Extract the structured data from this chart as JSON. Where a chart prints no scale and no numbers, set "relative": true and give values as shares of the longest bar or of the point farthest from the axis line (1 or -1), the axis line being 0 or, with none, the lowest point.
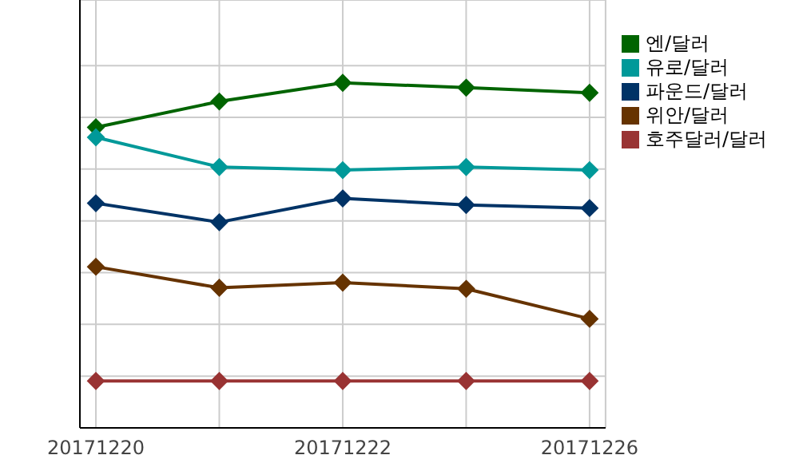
{
  "chart_data": {
    "type": "line",
    "relative": true,
    "categories": [
      "20171220",
      null,
      "20171222",
      null,
      "20171226"
    ],
    "series": [
      {
        "name": "엔/달러",
        "color": "#006400",
        "values": [
          0.871,
          0.946,
          1,
          0.986,
          0.971
        ]
      },
      {
        "name": "유로/달러",
        "color": "#009999",
        "values": [
          0.842,
          0.756,
          0.747,
          0.756,
          0.747
        ]
      },
      {
        "name": "파운드/달러",
        "color": "#003366",
        "values": [
          0.651,
          0.596,
          0.665,
          0.646,
          0.637
        ]
      },
      {
        "name": "위안/달러",
        "color": "#663300",
        "values": [
          0.467,
          0.406,
          0.421,
          0.403,
          0.316
        ]
      },
      {
        "name": "호주달러/달러",
        "color": "#993333",
        "values": [
          0.136,
          0.136,
          0.136,
          0.136,
          0.136
        ]
      }
    ],
    "grid": true,
    "legend": "top right",
    "marker": "diamond",
    "line_style": "solid"
  }
}
